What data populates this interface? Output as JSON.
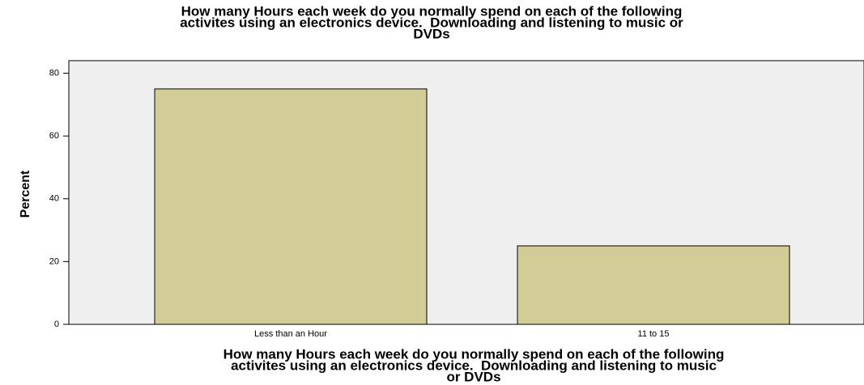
{
  "chart_data": {
    "type": "bar",
    "title": [
      "How many Hours each week do you normally spend on each of the following",
      "activites using an electronics device.  Downloading and listening to music or",
      "DVDs"
    ],
    "x_label": [
      "How many Hours each week do you normally spend on each of the following",
      "activites using an electronics device.  Downloading and listening to music",
      "or DVDs"
    ],
    "y_label": "Percent",
    "categories": [
      "Less than an Hour",
      "11 to 15"
    ],
    "values": [
      75,
      25
    ],
    "color": "#d2cc96",
    "ylim": [
      0,
      84
    ],
    "yticks": [
      0,
      20,
      40,
      60,
      80
    ],
    "grid": false
  }
}
